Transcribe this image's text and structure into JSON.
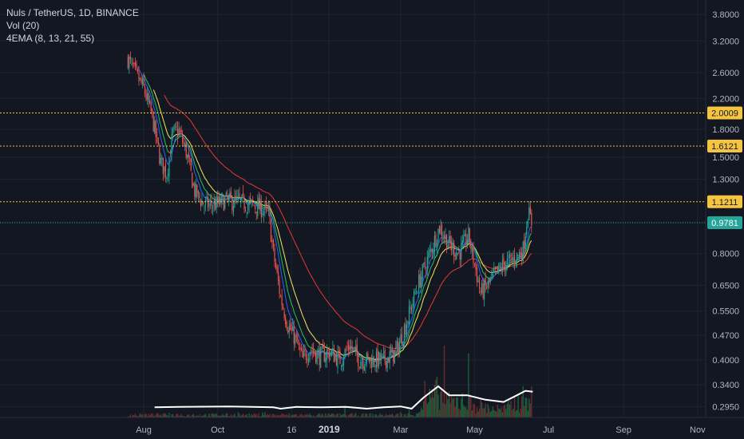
{
  "legend": {
    "symbol_line": "Nuls / TetherUS, 1D, BINANCE",
    "vol_line": "Vol (20)",
    "ema_line": "4EMA (8, 13, 21, 55)"
  },
  "colors": {
    "background": "#131722",
    "grid": "#1f2330",
    "candle_up": "#26a69a",
    "candle_down": "#ef5350",
    "vol_up": "#1b5e3a",
    "vol_down": "#6b2a30",
    "ema8": "#2962ff",
    "ema13": "#22c55e",
    "ema21": "#f5e663",
    "ema55": "#e53935",
    "vol_ma": "#ffffff",
    "hline": "#f5c542",
    "price_line": "#26a69a"
  },
  "chart_data": {
    "type": "candlestick",
    "symbol": "Nuls / TetherUS",
    "timeframe": "1D",
    "exchange": "BINANCE",
    "y_scale": "log",
    "ylim": [
      0.2835,
      4.05
    ],
    "y_ticks": [
      "3.8000",
      "3.2000",
      "2.6000",
      "2.2000",
      "1.8000",
      "1.5000",
      "1.3000",
      "0.9781",
      "0.8000",
      "0.6500",
      "0.5500",
      "0.4700",
      "0.4000",
      "0.3400",
      "0.2950"
    ],
    "x_ticks": [
      {
        "label": "Aug",
        "date": "2018-08-01"
      },
      {
        "label": "Oct",
        "date": "2018-10-01"
      },
      {
        "label": "16",
        "date": "2018-12-01"
      },
      {
        "label": "2019",
        "date": "2019-01-01",
        "bold": true
      },
      {
        "label": "Mar",
        "date": "2019-03-01"
      },
      {
        "label": "May",
        "date": "2019-05-01"
      },
      {
        "label": "Jul",
        "date": "2019-07-01"
      },
      {
        "label": "Sep",
        "date": "2019-09-01"
      },
      {
        "label": "Nov",
        "date": "2019-11-01"
      }
    ],
    "horizontal_levels": [
      {
        "value": 2.0009,
        "label": "2.0009"
      },
      {
        "value": 1.6121,
        "label": "1.6121"
      },
      {
        "value": 1.1211,
        "label": "1.1211"
      }
    ],
    "last_price": {
      "value": 0.9781,
      "label": "0.9781"
    },
    "close_path": [
      [
        "2018-07-19",
        2.85
      ],
      [
        "2018-07-26",
        2.55
      ],
      [
        "2018-08-01",
        2.35
      ],
      [
        "2018-08-08",
        1.95
      ],
      [
        "2018-08-15",
        1.45
      ],
      [
        "2018-08-20",
        1.35
      ],
      [
        "2018-08-25",
        1.75
      ],
      [
        "2018-08-30",
        1.78
      ],
      [
        "2018-09-05",
        1.55
      ],
      [
        "2018-09-12",
        1.2
      ],
      [
        "2018-09-20",
        1.1
      ],
      [
        "2018-09-28",
        1.1
      ],
      [
        "2018-10-08",
        1.13
      ],
      [
        "2018-10-18",
        1.12
      ],
      [
        "2018-10-28",
        1.1
      ],
      [
        "2018-11-05",
        1.08
      ],
      [
        "2018-11-12",
        1.04
      ],
      [
        "2018-11-16",
        0.8
      ],
      [
        "2018-11-22",
        0.6
      ],
      [
        "2018-11-28",
        0.5
      ],
      [
        "2018-12-04",
        0.46
      ],
      [
        "2018-12-10",
        0.4
      ],
      [
        "2018-12-16",
        0.43
      ],
      [
        "2018-12-24",
        0.41
      ],
      [
        "2019-01-02",
        0.42
      ],
      [
        "2019-01-10",
        0.4
      ],
      [
        "2019-01-18",
        0.44
      ],
      [
        "2019-01-26",
        0.4
      ],
      [
        "2019-02-05",
        0.4
      ],
      [
        "2019-02-15",
        0.4
      ],
      [
        "2019-02-25",
        0.42
      ],
      [
        "2019-03-05",
        0.5
      ],
      [
        "2019-03-15",
        0.65
      ],
      [
        "2019-03-25",
        0.8
      ],
      [
        "2019-04-02",
        0.95
      ],
      [
        "2019-04-10",
        0.85
      ],
      [
        "2019-04-18",
        0.8
      ],
      [
        "2019-04-26",
        0.9
      ],
      [
        "2019-05-02",
        0.72
      ],
      [
        "2019-05-06",
        0.62
      ],
      [
        "2019-05-12",
        0.65
      ],
      [
        "2019-05-18",
        0.7
      ],
      [
        "2019-05-26",
        0.75
      ],
      [
        "2019-06-04",
        0.78
      ],
      [
        "2019-06-10",
        0.82
      ],
      [
        "2019-06-14",
        1.05
      ],
      [
        "2019-06-17",
        0.98
      ]
    ],
    "volume_ma_path": [
      [
        "2018-08-10",
        0.03
      ],
      [
        "2018-08-30",
        0.04
      ],
      [
        "2018-09-20",
        0.045
      ],
      [
        "2018-10-10",
        0.05
      ],
      [
        "2018-10-30",
        0.04
      ],
      [
        "2018-11-16",
        0.03
      ],
      [
        "2018-11-22",
        0.0
      ],
      [
        "2018-12-05",
        0.04
      ],
      [
        "2018-12-25",
        0.03
      ],
      [
        "2019-01-15",
        0.04
      ],
      [
        "2019-02-01",
        0.0
      ],
      [
        "2019-02-15",
        0.03
      ],
      [
        "2019-03-01",
        0.05
      ],
      [
        "2019-03-10",
        0.0
      ],
      [
        "2019-03-20",
        0.25
      ],
      [
        "2019-04-01",
        0.5
      ],
      [
        "2019-04-10",
        0.3
      ],
      [
        "2019-04-25",
        0.3
      ],
      [
        "2019-05-10",
        0.2
      ],
      [
        "2019-05-25",
        0.15
      ],
      [
        "2019-06-05",
        0.3
      ],
      [
        "2019-06-12",
        0.4
      ],
      [
        "2019-06-18",
        0.38
      ]
    ]
  }
}
